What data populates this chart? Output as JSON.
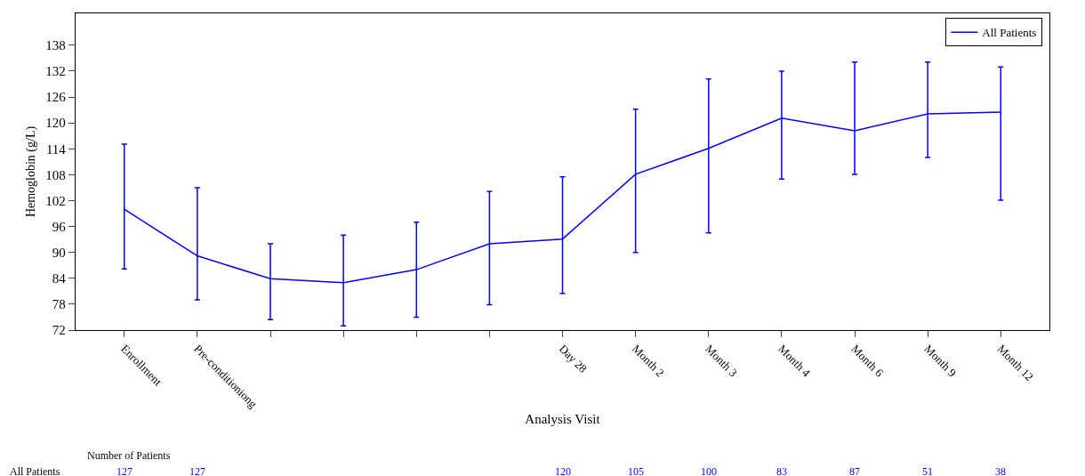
{
  "chart_data": {
    "type": "line",
    "xlabel": "Analysis Visit",
    "ylabel": "Hemoglobin (g/L)",
    "categories": [
      "Enrollment",
      "Pre-conditioniong",
      null,
      null,
      null,
      null,
      "Day 28",
      "Month 2",
      "Month 3",
      "Month 4",
      "Month 6",
      "Month 9",
      "Month 12"
    ],
    "series": [
      {
        "name": "All Patients",
        "color": "#0000ff",
        "values": [
          100,
          89.2,
          83.9,
          83,
          86,
          92,
          93.1,
          108.1,
          114.1,
          121.1,
          118.2,
          122.1,
          122.5
        ],
        "errors": [
          [
            86.2,
            115.1
          ],
          [
            79,
            105
          ],
          [
            74.4,
            92
          ],
          [
            73,
            94
          ],
          [
            75,
            97
          ],
          [
            77.9,
            104.1
          ],
          [
            80.5,
            107.5
          ],
          [
            90,
            123.2
          ],
          [
            94.5,
            130.2
          ],
          [
            107,
            132
          ],
          [
            108.1,
            134.1
          ],
          [
            112,
            134.1
          ],
          [
            102.1,
            133
          ]
        ]
      }
    ],
    "ylim": [
      72,
      145.4
    ],
    "yticks": [
      72,
      78,
      84,
      90,
      96,
      102,
      108,
      114,
      120,
      126,
      132,
      138
    ],
    "grid": false,
    "legend": "top right",
    "marker": "none",
    "line_style": "solid",
    "annotations": [
      "Number of Patients",
      "All Patients",
      "127",
      "127",
      "120",
      "105",
      "100",
      "83",
      "87",
      "51",
      "38"
    ]
  }
}
